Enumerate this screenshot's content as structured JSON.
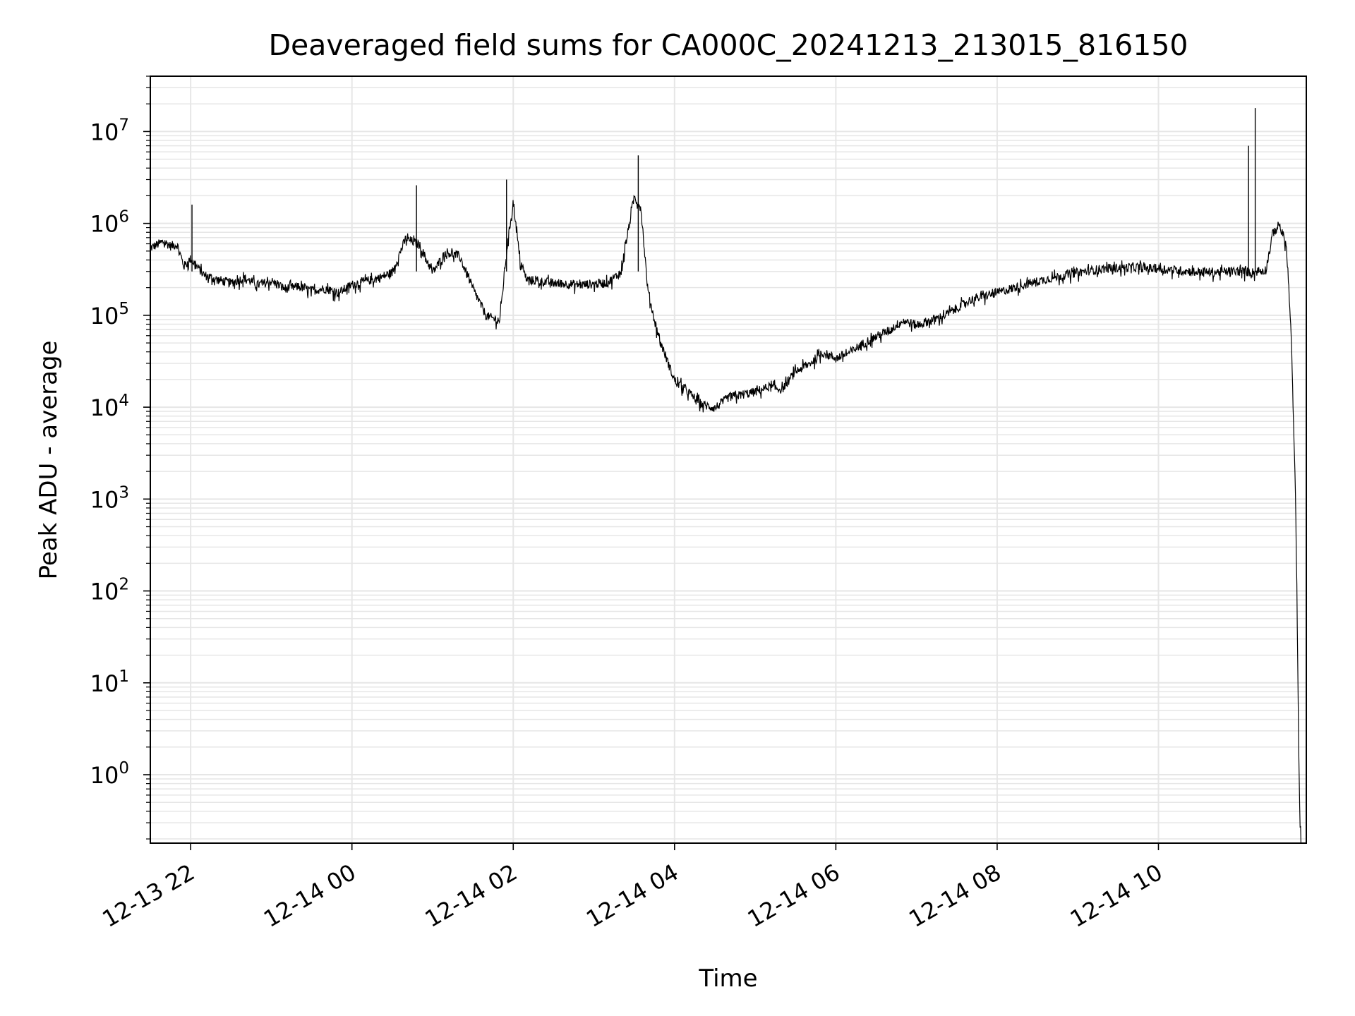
{
  "chart_data": {
    "type": "line",
    "title": "Deaveraged field sums for CA000C_20241213_213015_816150",
    "xlabel": "Time",
    "ylabel": "Peak ADU - average",
    "yscale": "log",
    "ylim": [
      0.18,
      40000000
    ],
    "xlim": [
      "12-13 21:30",
      "12-14 11:50"
    ],
    "grid": true,
    "line_color": "#000000",
    "grid_color": "#e6e6e6",
    "x_ticks": [
      {
        "t": "12-13 22:00",
        "label": "12-13 22"
      },
      {
        "t": "12-14 00:00",
        "label": "12-14 00"
      },
      {
        "t": "12-14 02:00",
        "label": "12-14 02"
      },
      {
        "t": "12-14 04:00",
        "label": "12-14 04"
      },
      {
        "t": "12-14 06:00",
        "label": "12-14 06"
      },
      {
        "t": "12-14 08:00",
        "label": "12-14 08"
      },
      {
        "t": "12-14 10:00",
        "label": "12-14 10"
      }
    ],
    "y_ticks": [
      {
        "value": 1,
        "base": "10",
        "exp": "0"
      },
      {
        "value": 10,
        "base": "10",
        "exp": "1"
      },
      {
        "value": 100,
        "base": "10",
        "exp": "2"
      },
      {
        "value": 1000,
        "base": "10",
        "exp": "3"
      },
      {
        "value": 10000,
        "base": "10",
        "exp": "4"
      },
      {
        "value": 100000,
        "base": "10",
        "exp": "5"
      },
      {
        "value": 1000000,
        "base": "10",
        "exp": "6"
      },
      {
        "value": 10000000,
        "base": "10",
        "exp": "7"
      }
    ],
    "series": [
      {
        "points": [
          [
            "12-13 21:30",
            550000
          ],
          [
            "12-13 21:35",
            600000
          ],
          [
            "12-13 21:40",
            650000
          ],
          [
            "12-13 21:45",
            580000
          ],
          [
            "12-13 21:50",
            600000
          ],
          [
            "12-13 21:55",
            350000
          ],
          [
            "12-13 22:00",
            420000
          ],
          [
            "12-13 22:10",
            280000
          ],
          [
            "12-13 22:20",
            250000
          ],
          [
            "12-13 22:30",
            230000
          ],
          [
            "12-13 22:40",
            260000
          ],
          [
            "12-13 22:50",
            220000
          ],
          [
            "12-13 23:00",
            240000
          ],
          [
            "12-13 23:10",
            200000
          ],
          [
            "12-13 23:20",
            210000
          ],
          [
            "12-13 23:30",
            190000
          ],
          [
            "12-13 23:40",
            200000
          ],
          [
            "12-13 23:50",
            180000
          ],
          [
            "12-14 00:00",
            220000
          ],
          [
            "12-14 00:10",
            240000
          ],
          [
            "12-14 00:20",
            260000
          ],
          [
            "12-14 00:30",
            300000
          ],
          [
            "12-14 00:40",
            700000
          ],
          [
            "12-14 00:50",
            600000
          ],
          [
            "12-14 01:00",
            300000
          ],
          [
            "12-14 01:10",
            500000
          ],
          [
            "12-14 01:20",
            450000
          ],
          [
            "12-14 01:30",
            200000
          ],
          [
            "12-14 01:40",
            100000
          ],
          [
            "12-14 01:50",
            90000
          ],
          [
            "12-14 01:55",
            500000
          ],
          [
            "12-14 02:00",
            1800000
          ],
          [
            "12-14 02:05",
            400000
          ],
          [
            "12-14 02:10",
            250000
          ],
          [
            "12-14 02:30",
            230000
          ],
          [
            "12-14 02:50",
            220000
          ],
          [
            "12-14 03:10",
            230000
          ],
          [
            "12-14 03:20",
            300000
          ],
          [
            "12-14 03:30",
            2000000
          ],
          [
            "12-14 03:35",
            1500000
          ],
          [
            "12-14 03:40",
            200000
          ],
          [
            "12-14 03:45",
            90000
          ],
          [
            "12-14 03:50",
            50000
          ],
          [
            "12-14 04:00",
            20000
          ],
          [
            "12-14 04:10",
            15000
          ],
          [
            "12-14 04:20",
            11000
          ],
          [
            "12-14 04:30",
            10000
          ],
          [
            "12-14 04:40",
            13000
          ],
          [
            "12-14 04:50",
            14000
          ],
          [
            "12-14 05:00",
            15000
          ],
          [
            "12-14 05:10",
            17000
          ],
          [
            "12-14 05:20",
            16000
          ],
          [
            "12-14 05:30",
            25000
          ],
          [
            "12-14 05:40",
            30000
          ],
          [
            "12-14 05:50",
            40000
          ],
          [
            "12-14 06:00",
            35000
          ],
          [
            "12-14 06:10",
            40000
          ],
          [
            "12-14 06:20",
            50000
          ],
          [
            "12-14 06:30",
            60000
          ],
          [
            "12-14 06:40",
            70000
          ],
          [
            "12-14 06:50",
            90000
          ],
          [
            "12-14 07:00",
            80000
          ],
          [
            "12-14 07:20",
            100000
          ],
          [
            "12-14 07:40",
            150000
          ],
          [
            "12-14 08:00",
            180000
          ],
          [
            "12-14 08:20",
            220000
          ],
          [
            "12-14 08:40",
            260000
          ],
          [
            "12-14 09:00",
            300000
          ],
          [
            "12-14 09:20",
            330000
          ],
          [
            "12-14 09:40",
            340000
          ],
          [
            "12-14 10:00",
            330000
          ],
          [
            "12-14 10:20",
            310000
          ],
          [
            "12-14 10:40",
            300000
          ],
          [
            "12-14 11:00",
            310000
          ],
          [
            "12-14 11:10",
            300000
          ],
          [
            "12-14 11:20",
            320000
          ],
          [
            "12-14 11:25",
            800000
          ],
          [
            "12-14 11:30",
            1000000
          ],
          [
            "12-14 11:35",
            600000
          ],
          [
            "12-14 11:37",
            200000
          ],
          [
            "12-14 11:39",
            50000
          ],
          [
            "12-14 11:40",
            12000
          ],
          [
            "12-14 11:41",
            4000
          ],
          [
            "12-14 11:42",
            1000
          ],
          [
            "12-14 11:43",
            100
          ],
          [
            "12-14 11:44",
            5
          ],
          [
            "12-14 11:45",
            0.5
          ],
          [
            "12-14 11:46",
            0.2
          ]
        ],
        "spikes": [
          [
            "12-13 22:01",
            1600000
          ],
          [
            "12-14 00:48",
            2600000
          ],
          [
            "12-14 01:55",
            3000000
          ],
          [
            "12-14 03:33",
            5500000
          ],
          [
            "12-14 11:07",
            7000000
          ],
          [
            "12-14 11:12",
            18000000
          ]
        ]
      }
    ]
  }
}
